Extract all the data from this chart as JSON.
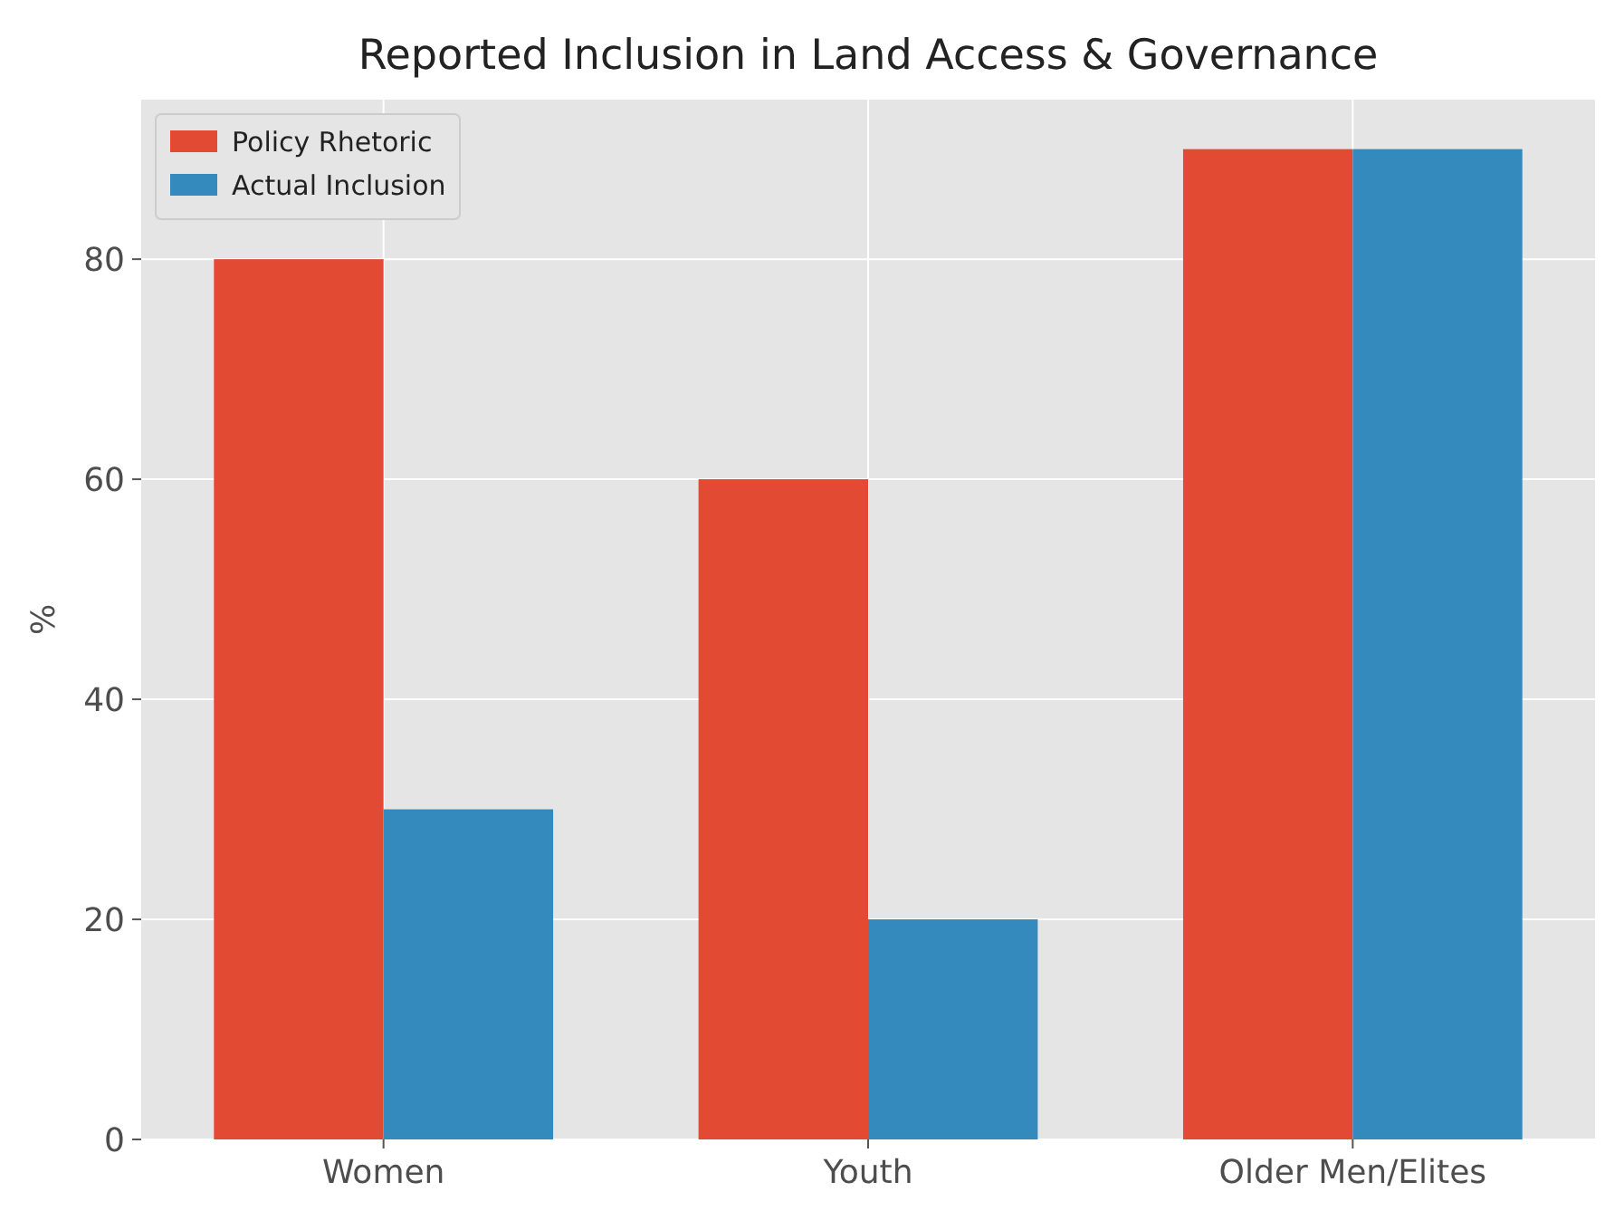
{
  "chart_data": {
    "type": "bar",
    "title": "Reported Inclusion in Land Access & Governance",
    "ylabel": "%",
    "categories": [
      "Women",
      "Youth",
      "Older Men/Elites"
    ],
    "series": [
      {
        "name": "Policy Rhetoric",
        "color": "#e24a33",
        "values": [
          80,
          60,
          90
        ]
      },
      {
        "name": "Actual Inclusion",
        "color": "#348abd",
        "values": [
          30,
          20,
          90
        ]
      }
    ],
    "ylim": [
      0,
      94.5
    ],
    "yticks": [
      0,
      20,
      40,
      60,
      80
    ],
    "grid": true,
    "legend": "top left"
  }
}
